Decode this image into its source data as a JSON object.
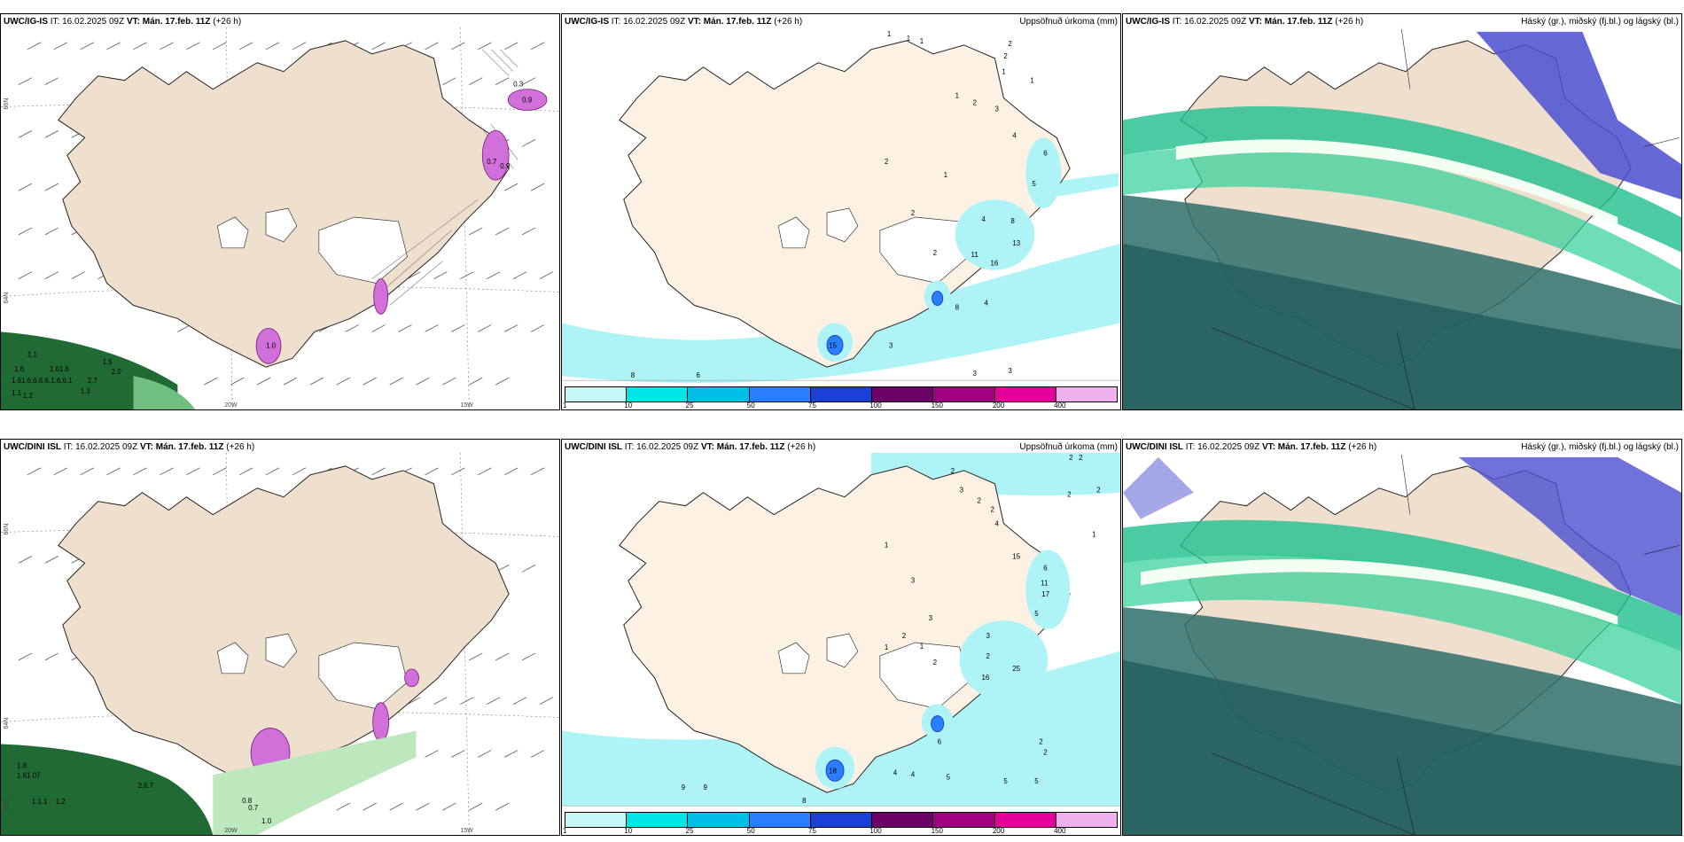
{
  "legend": {
    "ticks": [
      "1",
      "10",
      "25",
      "50",
      "75",
      "100",
      "150",
      "200",
      "400"
    ],
    "colors": [
      "#c8f7f7",
      "#00e5e5",
      "#00bfe6",
      "#2a7fff",
      "#1a3fd6",
      "#6b0066",
      "#a0007f",
      "#e6009b",
      "#f0b0f0"
    ]
  },
  "axis_labels": {
    "lon20": "20W",
    "lon15": "15W",
    "lat66": "66N",
    "lat64": "64N",
    "lat63": "63N"
  },
  "rows": [
    {
      "panels": [
        {
          "model": "UWC/IG-IS",
          "it_label": "IT:",
          "it": "16.02.2025 09Z",
          "vt_label": "VT:",
          "vt": "Mán. 17.feb. 11Z",
          "lead": "(+26 h)",
          "title": "",
          "values": [
            "1.1",
            "1.6",
            "1.5",
            "1.61.6",
            "2.0",
            "1.61.6.6.6.6.1.6.6.1",
            "2.7",
            "1.3",
            "1.2",
            "1.1",
            "1.0",
            "0.3",
            "0.9",
            "0.7",
            "0.9"
          ]
        },
        {
          "model": "UWC/IG-IS",
          "it_label": "IT:",
          "it": "16.02.2025 09Z",
          "vt_label": "VT:",
          "vt": "Mán. 17.feb. 11Z",
          "lead": "(+26 h)",
          "title": "Uppsöfnuð úrkoma (mm)",
          "values": [
            "1",
            "1",
            "1",
            "2",
            "2",
            "1",
            "1",
            "1",
            "2",
            "3",
            "4",
            "6",
            "5",
            "2",
            "1",
            "2",
            "4",
            "8",
            "13",
            "11",
            "2",
            "16",
            "8",
            "4",
            "3",
            "3",
            "3",
            "8",
            "6",
            "15"
          ]
        },
        {
          "model": "UWC/IG-IS",
          "it_label": "IT:",
          "it": "16.02.2025 09Z",
          "vt_label": "VT:",
          "vt": "Mán. 17.feb. 11Z",
          "lead": "(+26 h)",
          "title": "Háský (gr.), miðský (fj.bl.) og lágský (bl.)",
          "values": []
        }
      ]
    },
    {
      "panels": [
        {
          "model": "UWC/DINI ISL",
          "it_label": "IT:",
          "it": "16.02.2025 09Z",
          "vt_label": "VT:",
          "vt": "Mán. 17.feb. 11Z",
          "lead": "(+26 h)",
          "title": "",
          "values": [
            "1.6",
            "1.61.07",
            "2.6.7",
            "1.1.1",
            "1.2",
            "0.8",
            "0.7",
            "1.0"
          ]
        },
        {
          "model": "UWC/DINI ISL",
          "it_label": "IT:",
          "it": "16.02.2025 09Z",
          "vt_label": "VT:",
          "vt": "Mán. 17.feb. 11Z",
          "lead": "(+26 h)",
          "title": "Uppsöfnuð úrkoma (mm)",
          "values": [
            "2",
            "2",
            "2",
            "3",
            "2",
            "2",
            "2",
            "4",
            "2",
            "1",
            "1",
            "3",
            "15",
            "6",
            "11",
            "17",
            "3",
            "5",
            "2",
            "1",
            "1",
            "3",
            "2",
            "2",
            "25",
            "16",
            "6",
            "4",
            "4",
            "5",
            "5",
            "5",
            "9",
            "9",
            "8",
            "2",
            "2",
            "18"
          ]
        },
        {
          "model": "UWC/DINI ISL",
          "it_label": "IT:",
          "it": "16.02.2025 09Z",
          "vt_label": "VT:",
          "vt": "Mán. 17.feb. 11Z",
          "lead": "(+26 h)",
          "title": "Háský (gr.), miðský (fj.bl.) og lágský (bl.)",
          "values": []
        }
      ]
    }
  ]
}
